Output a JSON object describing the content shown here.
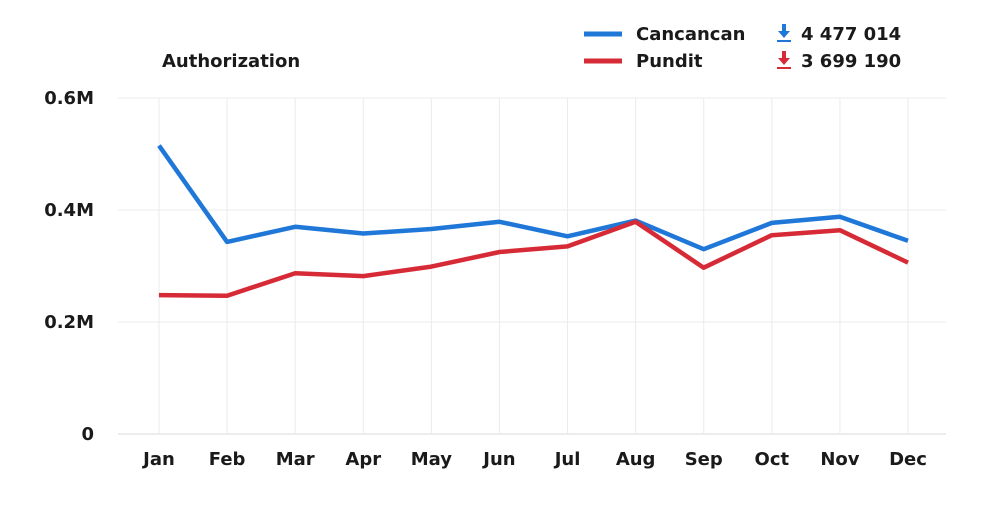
{
  "chart_data": {
    "type": "line",
    "title": "Authorization",
    "categories": [
      "Jan",
      "Feb",
      "Mar",
      "Apr",
      "May",
      "Jun",
      "Jul",
      "Aug",
      "Sep",
      "Oct",
      "Nov",
      "Dec"
    ],
    "ylim": [
      0,
      600000
    ],
    "yticks": [
      {
        "value": 0,
        "label": "0"
      },
      {
        "value": 200000,
        "label": "0.2M"
      },
      {
        "value": 400000,
        "label": "0.4M"
      },
      {
        "value": 600000,
        "label": "0.6M"
      }
    ],
    "grid": true,
    "legend_placement": "top-right",
    "series": [
      {
        "name": "Cancancan",
        "color": "#1f77d8",
        "total": "4 477 014",
        "total_icon": "download-arrow-icon",
        "values": [
          515000,
          343000,
          370000,
          358000,
          366000,
          379000,
          353000,
          381000,
          330000,
          377000,
          388000,
          345000
        ]
      },
      {
        "name": "Pundit",
        "color": "#d62b36",
        "total": "3 699 190",
        "total_icon": "download-arrow-icon",
        "values": [
          248000,
          247000,
          287000,
          282000,
          299000,
          325000,
          335000,
          379000,
          297000,
          355000,
          364000,
          306000
        ]
      }
    ]
  }
}
